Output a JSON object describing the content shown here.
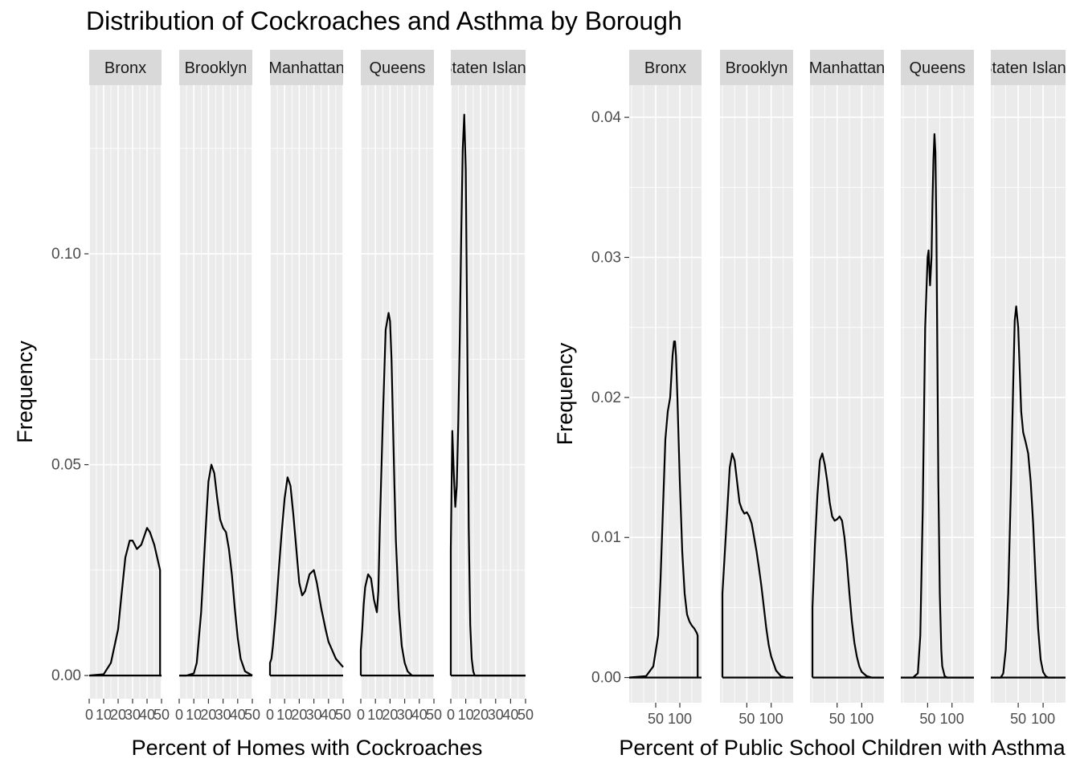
{
  "title": "Distribution of Cockroaches and Asthma by Borough",
  "colors": {
    "panel_bg": "#ebebeb",
    "strip_bg": "#d9d9d9",
    "grid": "#ffffff",
    "line": "#000000",
    "axis_text": "#4d4d4d"
  },
  "chart_data": [
    {
      "type": "area",
      "subtype": "density",
      "ylabel": "Frequency",
      "xlabel": "Percent of Homes with Cockroaches",
      "xlim": [
        0,
        50
      ],
      "ylim": [
        -0.0055,
        0.14
      ],
      "x_ticks": [
        0,
        10,
        20,
        30,
        40,
        50
      ],
      "x_tick_labels": [
        "0",
        "10",
        "20",
        "30",
        "40",
        "50"
      ],
      "y_ticks": [
        0.0,
        0.05,
        0.1
      ],
      "y_tick_labels": [
        "0.00",
        "0.05",
        "0.10"
      ],
      "facets": [
        {
          "name": "Bronx",
          "strip_label": "Bronx",
          "x": [
            0,
            10,
            15,
            20,
            22,
            25,
            28,
            30,
            33,
            36,
            38,
            40,
            42,
            45,
            47,
            49,
            49,
            50
          ],
          "y": [
            0,
            0.0003,
            0.003,
            0.011,
            0.018,
            0.028,
            0.032,
            0.032,
            0.03,
            0.031,
            0.033,
            0.035,
            0.034,
            0.031,
            0.028,
            0.025,
            0,
            0
          ]
        },
        {
          "name": "Brooklyn",
          "strip_label": "Brooklyn",
          "x": [
            0,
            5,
            10,
            12,
            15,
            18,
            20,
            22,
            24,
            26,
            28,
            30,
            32,
            34,
            36,
            38,
            40,
            42,
            45,
            50
          ],
          "y": [
            0,
            0,
            0.0005,
            0.003,
            0.015,
            0.034,
            0.046,
            0.05,
            0.048,
            0.042,
            0.037,
            0.035,
            0.034,
            0.03,
            0.024,
            0.016,
            0.009,
            0.004,
            0.001,
            0
          ]
        },
        {
          "name": "Manhattan",
          "strip_label": "Manhattan",
          "x": [
            0,
            0,
            1,
            2,
            4,
            6,
            8,
            10,
            12,
            14,
            16,
            18,
            20,
            22,
            24,
            27,
            30,
            32,
            35,
            38,
            40,
            45,
            50
          ],
          "y": [
            0,
            0.003,
            0.004,
            0.007,
            0.015,
            0.025,
            0.034,
            0.042,
            0.047,
            0.045,
            0.038,
            0.03,
            0.022,
            0.019,
            0.02,
            0.024,
            0.025,
            0.022,
            0.016,
            0.011,
            0.008,
            0.004,
            0.002
          ]
        },
        {
          "name": "Queens",
          "strip_label": "Queens",
          "x": [
            0,
            0,
            1,
            2,
            3,
            5,
            7,
            9,
            11,
            12,
            13,
            15,
            17,
            19,
            20,
            21,
            22,
            23,
            24,
            25,
            26,
            28,
            30,
            32,
            35,
            40,
            50
          ],
          "y": [
            0,
            0.006,
            0.011,
            0.017,
            0.021,
            0.024,
            0.023,
            0.018,
            0.015,
            0.02,
            0.035,
            0.06,
            0.082,
            0.086,
            0.084,
            0.075,
            0.06,
            0.045,
            0.032,
            0.024,
            0.016,
            0.007,
            0.003,
            0.001,
            0,
            0,
            0
          ]
        },
        {
          "name": "Staten Island",
          "strip_label": "Staten Island",
          "x": [
            0,
            0,
            1,
            2,
            3,
            4,
            5,
            6,
            7,
            8,
            9,
            10,
            11,
            12,
            13,
            14,
            15,
            16,
            18,
            20,
            30,
            40,
            50
          ],
          "y": [
            0,
            0.03,
            0.058,
            0.048,
            0.04,
            0.045,
            0.06,
            0.08,
            0.105,
            0.125,
            0.133,
            0.12,
            0.08,
            0.035,
            0.012,
            0.004,
            0.001,
            0,
            0,
            0,
            0,
            0,
            0
          ]
        }
      ]
    },
    {
      "type": "area",
      "subtype": "density",
      "ylabel": "Frequency",
      "xlabel": "Percent of Public School Children with Asthma",
      "xlim": [
        -5,
        145
      ],
      "ylim": [
        -0.0018,
        0.0423
      ],
      "x_ticks": [
        50,
        100
      ],
      "x_tick_labels": [
        "50",
        "100"
      ],
      "y_ticks": [
        0.0,
        0.01,
        0.02,
        0.03,
        0.04
      ],
      "y_tick_labels": [
        "0.00",
        "0.01",
        "0.02",
        "0.03",
        "0.04"
      ],
      "facets": [
        {
          "name": "Bronx",
          "strip_label": "Bronx",
          "x": [
            -5,
            30,
            45,
            55,
            60,
            65,
            70,
            75,
            80,
            85,
            88,
            90,
            92,
            95,
            100,
            105,
            110,
            115,
            120,
            125,
            130,
            135,
            137,
            137,
            145
          ],
          "y": [
            0,
            0.0001,
            0.0008,
            0.003,
            0.007,
            0.012,
            0.017,
            0.019,
            0.02,
            0.023,
            0.024,
            0.024,
            0.023,
            0.02,
            0.014,
            0.009,
            0.006,
            0.0045,
            0.004,
            0.0037,
            0.0035,
            0.0032,
            0.003,
            0,
            0
          ],
          "floor_x": [
            -5,
            137
          ]
        },
        {
          "name": "Brooklyn",
          "strip_label": "Brooklyn",
          "x": [
            0,
            0,
            5,
            10,
            15,
            20,
            25,
            30,
            35,
            40,
            45,
            50,
            55,
            60,
            65,
            70,
            75,
            80,
            85,
            90,
            95,
            100,
            110,
            120,
            130,
            145
          ],
          "y": [
            0,
            0.006,
            0.009,
            0.012,
            0.015,
            0.016,
            0.0155,
            0.014,
            0.0125,
            0.012,
            0.0117,
            0.0118,
            0.0115,
            0.011,
            0.01,
            0.009,
            0.0078,
            0.0065,
            0.005,
            0.0035,
            0.0023,
            0.0015,
            0.0005,
            0.0001,
            0,
            0
          ],
          "floor_x": [
            0,
            145
          ]
        },
        {
          "name": "Manhattan",
          "strip_label": "Manhattan",
          "x": [
            0,
            0,
            5,
            10,
            15,
            20,
            25,
            30,
            35,
            40,
            45,
            50,
            55,
            60,
            65,
            70,
            75,
            80,
            85,
            90,
            95,
            100,
            110,
            120,
            130,
            145
          ],
          "y": [
            0,
            0.005,
            0.0095,
            0.013,
            0.0155,
            0.016,
            0.0152,
            0.014,
            0.0125,
            0.0115,
            0.0112,
            0.0113,
            0.0115,
            0.0112,
            0.01,
            0.0082,
            0.006,
            0.004,
            0.0025,
            0.0015,
            0.0008,
            0.0004,
            0.0001,
            0,
            0,
            0
          ],
          "floor_x": [
            0,
            145
          ]
        },
        {
          "name": "Queens",
          "strip_label": "Queens",
          "x": [
            -5,
            20,
            30,
            35,
            40,
            45,
            50,
            52,
            55,
            58,
            60,
            62,
            64,
            66,
            68,
            70,
            72,
            75,
            78,
            80,
            85,
            90,
            100,
            145
          ],
          "y": [
            0,
            0,
            0.0003,
            0.003,
            0.012,
            0.025,
            0.03,
            0.0305,
            0.028,
            0.03,
            0.034,
            0.037,
            0.0388,
            0.0375,
            0.032,
            0.023,
            0.014,
            0.006,
            0.002,
            0.0008,
            0.0001,
            0,
            0,
            0
          ],
          "floor_x": [
            -5,
            145
          ]
        },
        {
          "name": "Staten Island",
          "strip_label": "Staten Island",
          "x": [
            -5,
            15,
            20,
            25,
            30,
            35,
            40,
            43,
            46,
            50,
            53,
            56,
            60,
            65,
            70,
            75,
            80,
            85,
            90,
            95,
            100,
            105,
            110,
            145
          ],
          "y": [
            0,
            0,
            0.0003,
            0.002,
            0.006,
            0.013,
            0.021,
            0.0255,
            0.0265,
            0.025,
            0.022,
            0.019,
            0.0175,
            0.0168,
            0.016,
            0.014,
            0.011,
            0.007,
            0.0035,
            0.0013,
            0.0004,
            0.0001,
            0,
            0
          ],
          "floor_x": [
            -5,
            145
          ]
        }
      ]
    }
  ]
}
